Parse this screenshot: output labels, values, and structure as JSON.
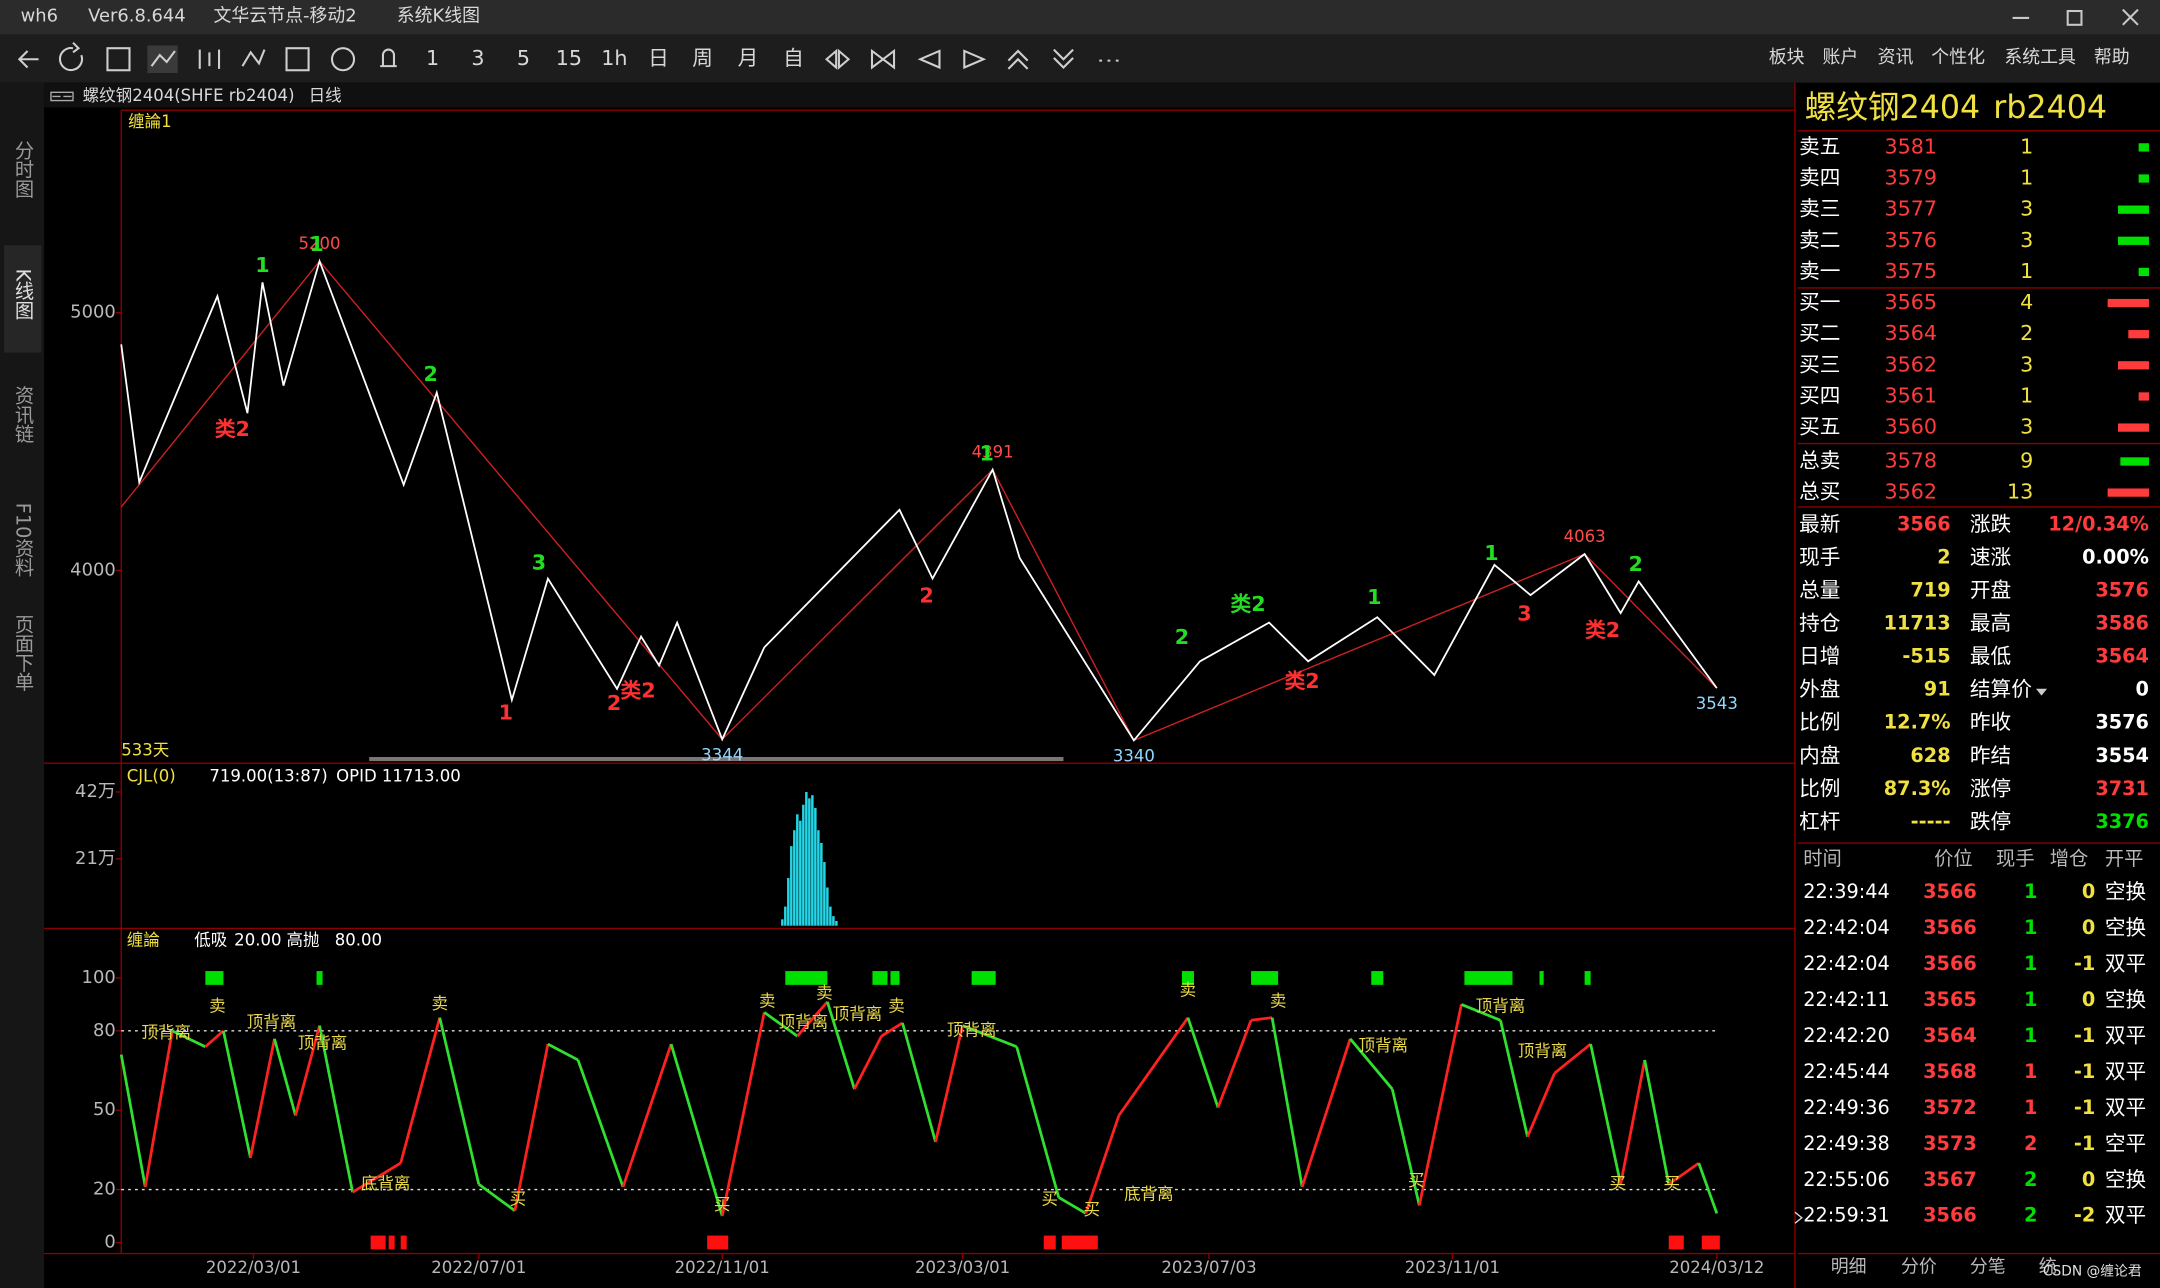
{
  "window": {
    "app": "wh6",
    "version": "Ver6.8.644",
    "server": "文华云节点-移动2",
    "view": "系统K线图"
  },
  "toolbar": {
    "periods": [
      "1",
      "3",
      "5",
      "15",
      "1h",
      "日",
      "周",
      "月",
      "自"
    ],
    "menu": [
      "板块",
      "账户",
      "资讯",
      "个性化",
      "系统工具",
      "帮助"
    ]
  },
  "side_tabs": [
    "分时图",
    "K线图",
    "资讯链",
    "F10资料",
    "页面下单"
  ],
  "chart_header": {
    "symbol": "螺纹钢2404(SHFE rb2404)",
    "period": "日线"
  },
  "chart_data": [
    {
      "type": "line",
      "indicator": "缠論1",
      "bar_count": "533天",
      "xlim": [
        0,
        557
      ],
      "ylim": [
        3257,
        5786
      ],
      "yticks": [
        5000,
        4000
      ],
      "xticks": [
        {
          "value": 44,
          "label": "2022/03/01"
        },
        {
          "value": 119,
          "label": "2022/07/01"
        },
        {
          "value": 200,
          "label": "2022/11/01"
        },
        {
          "value": 280,
          "label": "2023/03/01"
        },
        {
          "value": 362,
          "label": "2023/07/03"
        },
        {
          "value": 443,
          "label": "2023/11/01"
        },
        {
          "value": 531,
          "label": "2024/03/12"
        }
      ],
      "series": [
        {
          "color": "#ffffff",
          "x": [
            0,
            6,
            32,
            42,
            47,
            54,
            66,
            94,
            105,
            130,
            142,
            165,
            173,
            179,
            185,
            200,
            214,
            259,
            270,
            290,
            299,
            337,
            359,
            382,
            395,
            418,
            437,
            457,
            469,
            487,
            499,
            505,
            531
          ],
          "values": [
            4877,
            4342,
            5064,
            4610,
            5118,
            4717,
            5200,
            4332,
            4690,
            3497,
            3968,
            3540,
            3743,
            3631,
            3797,
            3344,
            3701,
            4235,
            3968,
            4391,
            4048,
            3340,
            3647,
            3797,
            3647,
            3818,
            3594,
            4021,
            3904,
            4063,
            3834,
            3957,
            3543
          ],
          "value_labels": [
            null,
            null,
            null,
            null,
            null,
            null,
            "5200",
            null,
            null,
            null,
            null,
            null,
            null,
            null,
            null,
            "3344",
            null,
            null,
            null,
            "4391",
            null,
            "3340",
            null,
            null,
            null,
            null,
            null,
            null,
            null,
            "4063",
            null,
            null,
            "3543"
          ]
        },
        {
          "color": "#d02020",
          "x": [
            0,
            66,
            200,
            290,
            337,
            487,
            531
          ],
          "values": [
            4246,
            5200,
            3344,
            4391,
            3340,
            4063,
            3543
          ]
        }
      ],
      "annotations": [
        {
          "x": 47,
          "y": 5182,
          "text": "1",
          "color": "#22dd22"
        },
        {
          "x": 37,
          "y": 4545,
          "text": "类2",
          "color": "#ff3030"
        },
        {
          "x": 65,
          "y": 5262,
          "text": "1",
          "color": "#22dd22"
        },
        {
          "x": 103,
          "y": 4759,
          "text": "2",
          "color": "#22dd22"
        },
        {
          "x": 139,
          "y": 4027,
          "text": "3",
          "color": "#22dd22"
        },
        {
          "x": 128,
          "y": 3444,
          "text": "1",
          "color": "#ff3030"
        },
        {
          "x": 164,
          "y": 3481,
          "text": "2",
          "color": "#ff3030"
        },
        {
          "x": 172,
          "y": 3529,
          "text": "类2",
          "color": "#ff3030"
        },
        {
          "x": 268,
          "y": 3898,
          "text": "2",
          "color": "#ff3030"
        },
        {
          "x": 288,
          "y": 4449,
          "text": "1",
          "color": "#22dd22"
        },
        {
          "x": 353,
          "y": 3738,
          "text": "2",
          "color": "#22dd22"
        },
        {
          "x": 375,
          "y": 3866,
          "text": "类2",
          "color": "#22dd22"
        },
        {
          "x": 393,
          "y": 3567,
          "text": "类2",
          "color": "#ff3030"
        },
        {
          "x": 417,
          "y": 3893,
          "text": "1",
          "color": "#22dd22"
        },
        {
          "x": 456,
          "y": 4064,
          "text": "1",
          "color": "#22dd22"
        },
        {
          "x": 467,
          "y": 3829,
          "text": "3",
          "color": "#ff3030"
        },
        {
          "x": 504,
          "y": 4021,
          "text": "2",
          "color": "#22dd22"
        },
        {
          "x": 493,
          "y": 3765,
          "text": "类2",
          "color": "#ff3030"
        }
      ]
    },
    {
      "type": "bar",
      "name": "CJL(0)",
      "last": "719.00(13:87)",
      "opi": "OPID 11713.00",
      "xlim": [
        0,
        557
      ],
      "ylim": [
        0,
        502000
      ],
      "yticks": [
        {
          "value": 420000,
          "label": "42万"
        },
        {
          "value": 210000,
          "label": "21万"
        }
      ],
      "color": "#20d8e8",
      "x": [
        220,
        221,
        222,
        223,
        224,
        225,
        226,
        227,
        228,
        229,
        230,
        231,
        232,
        233,
        234,
        235,
        236,
        237,
        238
      ],
      "values": [
        20000,
        60000,
        150000,
        250000,
        300000,
        350000,
        330000,
        380000,
        420000,
        400000,
        410000,
        370000,
        300000,
        260000,
        200000,
        120000,
        60000,
        30000,
        15000
      ]
    },
    {
      "type": "line",
      "name": "缠論",
      "params": [
        "低吸",
        "20.00",
        "高抛",
        "80.00"
      ],
      "xlim": [
        0,
        557
      ],
      "ylim": [
        -4.2,
        118.2
      ],
      "yticks": [
        100,
        80,
        50,
        20,
        0
      ],
      "grid_dashed": [
        80,
        20
      ],
      "up_color": "#ff2020",
      "down_color": "#30e030",
      "x": [
        0,
        8,
        17,
        28,
        34,
        43,
        51,
        58,
        66,
        77,
        93,
        106,
        119,
        131,
        142,
        152,
        167,
        183,
        200,
        214,
        225,
        235,
        244,
        253,
        260,
        271,
        280,
        298,
        312,
        321,
        332,
        355,
        365,
        376,
        383,
        393,
        409,
        423,
        432,
        446,
        459,
        468,
        477,
        489,
        499,
        507,
        515,
        525,
        531
      ],
      "values": [
        71,
        21,
        80,
        74,
        80,
        32,
        77,
        48,
        82,
        19,
        30,
        85,
        22,
        12,
        75,
        69,
        21,
        75,
        10,
        87,
        78,
        91,
        58,
        78,
        83,
        38,
        82,
        74,
        17,
        11,
        48,
        85,
        51,
        84,
        85,
        21,
        77,
        58,
        14,
        90,
        84,
        40,
        64,
        75,
        22,
        69,
        22,
        30,
        11
      ],
      "top_signal_color": "#00e000",
      "bottom_signal_color": "#ff1010",
      "top_signals": [
        [
          28,
          34
        ],
        [
          65,
          67
        ],
        [
          221,
          235
        ],
        [
          250,
          255
        ],
        [
          256,
          259
        ],
        [
          283,
          291
        ],
        [
          353,
          357
        ],
        [
          376,
          385
        ],
        [
          416,
          420
        ],
        [
          447,
          463
        ],
        [
          472,
          473
        ],
        [
          487,
          489
        ]
      ],
      "bottom_signals": [
        [
          83,
          88
        ],
        [
          89,
          91
        ],
        [
          93,
          95
        ],
        [
          195,
          202
        ],
        [
          307,
          311
        ],
        [
          313,
          325
        ],
        [
          515,
          520
        ],
        [
          526,
          532
        ]
      ],
      "annotations": [
        {
          "x": 15,
          "y": 79,
          "text": "顶背离"
        },
        {
          "x": 32,
          "y": 89,
          "text": "卖"
        },
        {
          "x": 50,
          "y": 83,
          "text": "顶背离"
        },
        {
          "x": 67,
          "y": 75,
          "text": "顶背离"
        },
        {
          "x": 88,
          "y": 22,
          "text": "底背离"
        },
        {
          "x": 106,
          "y": 90,
          "text": "卖"
        },
        {
          "x": 132,
          "y": 16,
          "text": "买"
        },
        {
          "x": 200,
          "y": 14,
          "text": "买"
        },
        {
          "x": 215,
          "y": 91,
          "text": "卖"
        },
        {
          "x": 227,
          "y": 83,
          "text": "顶背离"
        },
        {
          "x": 234,
          "y": 94,
          "text": "卖"
        },
        {
          "x": 245,
          "y": 86,
          "text": "顶背离"
        },
        {
          "x": 258,
          "y": 89,
          "text": "卖"
        },
        {
          "x": 283,
          "y": 80,
          "text": "顶背离"
        },
        {
          "x": 309,
          "y": 16,
          "text": "买"
        },
        {
          "x": 323,
          "y": 12,
          "text": "买"
        },
        {
          "x": 342,
          "y": 18,
          "text": "底背离"
        },
        {
          "x": 355,
          "y": 95,
          "text": "卖"
        },
        {
          "x": 385,
          "y": 91,
          "text": "卖"
        },
        {
          "x": 420,
          "y": 74,
          "text": "顶背离"
        },
        {
          "x": 431,
          "y": 23,
          "text": "买"
        },
        {
          "x": 459,
          "y": 89,
          "text": "顶背离"
        },
        {
          "x": 473,
          "y": 72,
          "text": "顶背离"
        },
        {
          "x": 498,
          "y": 22,
          "text": "买"
        },
        {
          "x": 516,
          "y": 22,
          "text": "买"
        }
      ]
    }
  ],
  "quote_panel": {
    "name": "螺纹钢2404",
    "code": "rb2404",
    "asks": [
      {
        "label": "卖五",
        "price": 3581,
        "qty": 1
      },
      {
        "label": "卖四",
        "price": 3579,
        "qty": 1
      },
      {
        "label": "卖三",
        "price": 3577,
        "qty": 3
      },
      {
        "label": "卖二",
        "price": 3576,
        "qty": 3
      },
      {
        "label": "卖一",
        "price": 3575,
        "qty": 1
      }
    ],
    "bids": [
      {
        "label": "买一",
        "price": 3565,
        "qty": 4
      },
      {
        "label": "买二",
        "price": 3564,
        "qty": 2
      },
      {
        "label": "买三",
        "price": 3562,
        "qty": 3
      },
      {
        "label": "买四",
        "price": 3561,
        "qty": 1
      },
      {
        "label": "买五",
        "price": 3560,
        "qty": 3
      }
    ],
    "totals": [
      {
        "label": "总卖",
        "price": 3578,
        "qty": 9,
        "color": "#00e000"
      },
      {
        "label": "总买",
        "price": 3562,
        "qty": 13,
        "color": "#ff3b3b"
      }
    ],
    "stats": [
      [
        {
          "label": "最新",
          "value": "3566",
          "color": "red"
        },
        {
          "label": "涨跌",
          "value": "12/0.34%",
          "color": "red"
        }
      ],
      [
        {
          "label": "现手",
          "value": "2",
          "color": "yellow"
        },
        {
          "label": "速涨",
          "value": "0.00%",
          "color": "white"
        }
      ],
      [
        {
          "label": "总量",
          "value": "719",
          "color": "yellow"
        },
        {
          "label": "开盘",
          "value": "3576",
          "color": "red"
        }
      ],
      [
        {
          "label": "持仓",
          "value": "11713",
          "color": "yellow"
        },
        {
          "label": "最高",
          "value": "3586",
          "color": "red"
        }
      ],
      [
        {
          "label": "日增",
          "value": "-515",
          "color": "yellow"
        },
        {
          "label": "最低",
          "value": "3564",
          "color": "red"
        }
      ],
      [
        {
          "label": "外盘",
          "value": "91",
          "color": "yellow"
        },
        {
          "label": "结算价",
          "value": "0",
          "color": "white"
        }
      ],
      [
        {
          "label": "比例",
          "value": "12.7%",
          "color": "yellow"
        },
        {
          "label": "昨收",
          "value": "3576",
          "color": "white"
        }
      ],
      [
        {
          "label": "内盘",
          "value": "628",
          "color": "yellow"
        },
        {
          "label": "昨结",
          "value": "3554",
          "color": "white"
        }
      ],
      [
        {
          "label": "比例",
          "value": "87.3%",
          "color": "yellow"
        },
        {
          "label": "涨停",
          "value": "3731",
          "color": "red"
        }
      ],
      [
        {
          "label": "杠杆",
          "value": "-----",
          "color": "yellow"
        },
        {
          "label": "跌停",
          "value": "3376",
          "color": "green"
        }
      ]
    ]
  },
  "trade_ticks": {
    "header": [
      "时间",
      "价位",
      "现手",
      "增仓",
      "开平"
    ],
    "rows": [
      {
        "time": "22:39:44",
        "price": "3566",
        "hand": "1",
        "delta": "0",
        "type": "空换",
        "hand_color": "green"
      },
      {
        "time": "22:42:04",
        "price": "3566",
        "hand": "1",
        "delta": "0",
        "type": "空换",
        "hand_color": "green"
      },
      {
        "time": "22:42:04",
        "price": "3566",
        "hand": "1",
        "delta": "-1",
        "type": "双平",
        "hand_color": "green"
      },
      {
        "time": "22:42:11",
        "price": "3565",
        "hand": "1",
        "delta": "0",
        "type": "空换",
        "hand_color": "green"
      },
      {
        "time": "22:42:20",
        "price": "3564",
        "hand": "1",
        "delta": "-1",
        "type": "双平",
        "hand_color": "green"
      },
      {
        "time": "22:45:44",
        "price": "3568",
        "hand": "1",
        "delta": "-1",
        "type": "双平",
        "hand_color": "red"
      },
      {
        "time": "22:49:36",
        "price": "3572",
        "hand": "1",
        "delta": "-1",
        "type": "双平",
        "hand_color": "red"
      },
      {
        "time": "22:49:38",
        "price": "3573",
        "hand": "2",
        "delta": "-1",
        "type": "空平",
        "hand_color": "red"
      },
      {
        "time": "22:55:06",
        "price": "3567",
        "hand": "2",
        "delta": "0",
        "type": "空换",
        "hand_color": "green"
      },
      {
        "time": "22:59:31",
        "price": "3566",
        "hand": "2",
        "delta": "-2",
        "type": "双平",
        "hand_color": "green"
      }
    ]
  },
  "bottom_tabs": [
    "明细",
    "分价",
    "分笔",
    "统"
  ],
  "watermark": "CSDN @缠论君"
}
